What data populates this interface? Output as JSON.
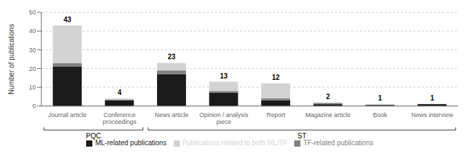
{
  "chart_data": {
    "type": "bar",
    "stacked": true,
    "categories": [
      "Journal article",
      "Conference\nproceedings",
      "News article",
      "Opinion / analysis\npiece",
      "Report",
      "Magazine article",
      "Book",
      "News interview"
    ],
    "series": [
      {
        "name": "ML-related publications",
        "color": "#1a1a1a",
        "values": [
          21,
          3,
          17,
          7,
          3,
          1,
          0.5,
          1
        ]
      },
      {
        "name": "TF-related publications",
        "color": "#808080",
        "values": [
          2,
          0.5,
          2,
          1,
          1,
          0.5,
          0.2,
          0
        ]
      },
      {
        "name": "Publications related to both ML/TF",
        "color": "#d3d3d3",
        "values": [
          20,
          0.5,
          4,
          5,
          8,
          0.5,
          0.3,
          0
        ]
      }
    ],
    "totals": [
      43,
      4,
      23,
      13,
      12,
      2,
      1,
      1
    ],
    "groups": [
      {
        "name": "PQC",
        "categories": [
          "Journal article",
          "Conference\nproceedings"
        ]
      },
      {
        "name": "ST",
        "categories": [
          "News article",
          "Opinion / analysis\npiece",
          "Report",
          "Magazine article",
          "Book",
          "News interview"
        ]
      }
    ],
    "ylabel": "Number of publications",
    "ylim": [
      0,
      50
    ],
    "yticks": [
      0,
      10,
      20,
      30,
      40,
      50
    ],
    "grid": true,
    "legend": "bottom"
  }
}
